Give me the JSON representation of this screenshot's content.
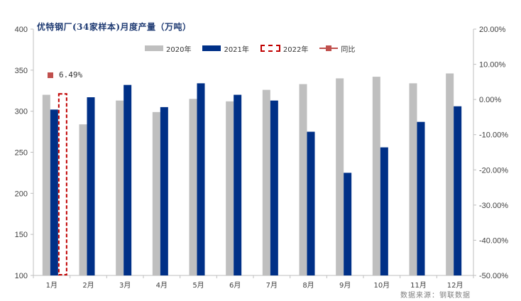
{
  "title": "优特钢厂(34家样本)月度产量（万吨）",
  "source": "数据来源：钢联数据",
  "colors": {
    "s2020": "#bfbfbf",
    "s2021": "#003087",
    "s2022": "#c00000",
    "yoy": "#c0504d",
    "axis": "#bfbfbf",
    "text": "#404040"
  },
  "legend": {
    "s2020": "2020年",
    "s2021": "2021年",
    "s2022": "2022年",
    "yoy": "同比"
  },
  "chart_data": {
    "type": "bar",
    "categories": [
      "1月",
      "2月",
      "3月",
      "4月",
      "5月",
      "6月",
      "7月",
      "8月",
      "9月",
      "10月",
      "11月",
      "12月"
    ],
    "series": [
      {
        "name": "2020年",
        "values": [
          320,
          284,
          313,
          299,
          315,
          312,
          326,
          333,
          340,
          342,
          334,
          346
        ]
      },
      {
        "name": "2021年",
        "values": [
          302,
          317,
          332,
          305,
          334,
          320,
          313,
          275,
          225,
          256,
          287,
          306
        ]
      },
      {
        "name": "2022年",
        "values": [
          322,
          null,
          null,
          null,
          null,
          null,
          null,
          null,
          null,
          null,
          null,
          null
        ]
      },
      {
        "name": "同比",
        "axis": "right",
        "values": [
          6.49,
          null,
          null,
          null,
          null,
          null,
          null,
          null,
          null,
          null,
          null,
          null
        ]
      }
    ],
    "ylim": [
      100,
      400
    ],
    "yticks": [
      "400",
      "350",
      "300",
      "250",
      "200",
      "150",
      "100"
    ],
    "y2lim": [
      -50,
      20
    ],
    "y2ticks": [
      "20.00%",
      "10.00%",
      "0.00%",
      "-10.00%",
      "-20.00%",
      "-30.00%",
      "-40.00%",
      "-50.00%"
    ],
    "annotation": "6.49%",
    "legend_position": "top-center",
    "grid": false
  }
}
